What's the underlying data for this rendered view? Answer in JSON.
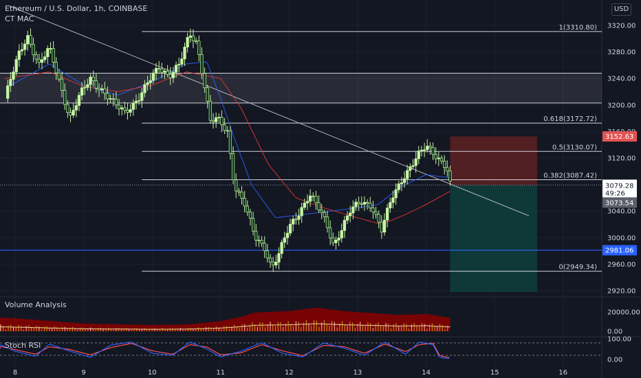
{
  "header": {
    "title": "Ethereum / U.S. Dollar, 1h, COINBASE",
    "indicator": "CT MAC",
    "currency_button": "USD"
  },
  "panes": {
    "volume_label": "Volume Analysis",
    "stoch_label": "Stoch RSI"
  },
  "colors": {
    "background": "#131722",
    "up": "#c6f5a3",
    "down": "#0b3a1a",
    "ma_fast": "#2962ff",
    "ma_slow": "#e53935",
    "fib_line": "#d1d4dc",
    "trend_line": "#b2b5be",
    "support_line": "#2962ff",
    "stop_zone": "#5a2024",
    "target_zone": "#0f3d3c",
    "volume_fill": "#8b0000",
    "stoch_k": "#2962ff",
    "stoch_d": "#ff5252"
  },
  "chart_data": {
    "type": "candlestick",
    "symbol": "Ethereum / U.S. Dollar",
    "interval": "1h",
    "exchange": "COINBASE",
    "x_axis_ticks": [
      "8",
      "9",
      "10",
      "11",
      "12",
      "13",
      "14",
      "15",
      "16"
    ],
    "y_axis_ticks": [
      "3320.00",
      "3280.00",
      "3240.00",
      "3200.00",
      "3160.00",
      "3120.00",
      "3080.00",
      "3040.00",
      "3000.00",
      "2960.00",
      "2920.00"
    ],
    "ylim": [
      2918,
      3330
    ],
    "price_path": [
      [
        7.85,
        3210
      ],
      [
        8.05,
        3275
      ],
      [
        8.18,
        3305
      ],
      [
        8.35,
        3260
      ],
      [
        8.5,
        3285
      ],
      [
        8.65,
        3235
      ],
      [
        8.8,
        3180
      ],
      [
        8.95,
        3215
      ],
      [
        9.1,
        3240
      ],
      [
        9.25,
        3225
      ],
      [
        9.45,
        3200
      ],
      [
        9.6,
        3190
      ],
      [
        9.8,
        3210
      ],
      [
        10.0,
        3242
      ],
      [
        10.1,
        3258
      ],
      [
        10.25,
        3245
      ],
      [
        10.4,
        3260
      ],
      [
        10.55,
        3307
      ],
      [
        10.65,
        3295
      ],
      [
        10.75,
        3240
      ],
      [
        10.85,
        3175
      ],
      [
        10.95,
        3178
      ],
      [
        11.1,
        3160
      ],
      [
        11.2,
        3080
      ],
      [
        11.35,
        3050
      ],
      [
        11.5,
        3000
      ],
      [
        11.65,
        2985
      ],
      [
        11.75,
        2955
      ],
      [
        11.85,
        2975
      ],
      [
        12.0,
        3015
      ],
      [
        12.15,
        3040
      ],
      [
        12.3,
        3065
      ],
      [
        12.45,
        3040
      ],
      [
        12.55,
        3020
      ],
      [
        12.65,
        2990
      ],
      [
        12.75,
        3010
      ],
      [
        12.9,
        3040
      ],
      [
        13.05,
        3055
      ],
      [
        13.2,
        3050
      ],
      [
        13.35,
        3010
      ],
      [
        13.5,
        3060
      ],
      [
        13.65,
        3090
      ],
      [
        13.8,
        3110
      ],
      [
        13.9,
        3125
      ],
      [
        14.0,
        3138
      ],
      [
        14.1,
        3130
      ],
      [
        14.2,
        3118
      ],
      [
        14.3,
        3105
      ],
      [
        14.35,
        3079
      ]
    ],
    "series": [
      {
        "name": "CT MAC fast",
        "style": "line",
        "path": [
          [
            7.85,
            3225
          ],
          [
            8.5,
            3262
          ],
          [
            9.0,
            3230
          ],
          [
            9.5,
            3215
          ],
          [
            10.0,
            3235
          ],
          [
            10.5,
            3262
          ],
          [
            10.8,
            3265
          ],
          [
            11.0,
            3210
          ],
          [
            11.2,
            3150
          ],
          [
            11.45,
            3080
          ],
          [
            11.8,
            3030
          ],
          [
            12.2,
            3035
          ],
          [
            12.6,
            3040
          ],
          [
            13.0,
            3045
          ],
          [
            13.3,
            3050
          ],
          [
            13.6,
            3075
          ],
          [
            14.0,
            3095
          ],
          [
            14.35,
            3090
          ]
        ]
      },
      {
        "name": "CT MAC slow",
        "style": "line",
        "path": [
          [
            7.85,
            3240
          ],
          [
            8.5,
            3250
          ],
          [
            9.0,
            3228
          ],
          [
            9.5,
            3220
          ],
          [
            10.0,
            3230
          ],
          [
            10.5,
            3250
          ],
          [
            11.0,
            3240
          ],
          [
            11.3,
            3195
          ],
          [
            11.7,
            3110
          ],
          [
            12.1,
            3060
          ],
          [
            12.5,
            3045
          ],
          [
            13.0,
            3030
          ],
          [
            13.35,
            3020
          ],
          [
            13.7,
            3035
          ],
          [
            14.0,
            3050
          ],
          [
            14.35,
            3070
          ]
        ]
      }
    ],
    "fibonacci": [
      {
        "label": "1(3310.80)",
        "price": 3310.8
      },
      {
        "label": "0.618(3172.72)",
        "price": 3172.72
      },
      {
        "label": "0.5(3130.07)",
        "price": 3130.07
      },
      {
        "label": "0.382(3087.42)",
        "price": 3087.42
      },
      {
        "label": "0(2949.34)",
        "price": 2949.34
      }
    ],
    "horizontal_levels": [
      3248,
      3203
    ],
    "trend_line": [
      [
        7.9,
        3350
      ],
      [
        15.5,
        3033
      ]
    ],
    "support_line": {
      "price": 2981.06,
      "label": "2981.06"
    },
    "position": {
      "stop": 3152.63,
      "entry": 3079.28,
      "target": 2918
    },
    "price_labels": {
      "stop": "3152.63",
      "current": "3079.28",
      "countdown": "49:26",
      "ma": "3073.54",
      "support": "2981.06"
    },
    "volume": {
      "y_ticks": [
        "20000.00",
        "0.00"
      ],
      "envelope": [
        [
          7.5,
          15000
        ],
        [
          8.0,
          13500
        ],
        [
          9.0,
          8000
        ],
        [
          10.0,
          6500
        ],
        [
          10.5,
          7000
        ],
        [
          11.0,
          10500
        ],
        [
          11.3,
          15000
        ],
        [
          11.5,
          19500
        ],
        [
          12.0,
          21000
        ],
        [
          12.4,
          24500
        ],
        [
          12.8,
          21000
        ],
        [
          13.2,
          19000
        ],
        [
          13.6,
          17000
        ],
        [
          14.0,
          18000
        ],
        [
          14.3,
          14500
        ],
        [
          14.35,
          14000
        ]
      ]
    },
    "stoch_rsi": {
      "y_ticks": [
        "100.00",
        "0.00"
      ],
      "bands": [
        80,
        20
      ],
      "k": [
        [
          7.5,
          55
        ],
        [
          7.8,
          70
        ],
        [
          8.0,
          40
        ],
        [
          8.3,
          15
        ],
        [
          8.5,
          75
        ],
        [
          8.8,
          40
        ],
        [
          9.1,
          10
        ],
        [
          9.4,
          70
        ],
        [
          9.7,
          85
        ],
        [
          10.0,
          30
        ],
        [
          10.3,
          20
        ],
        [
          10.55,
          85
        ],
        [
          10.8,
          50
        ],
        [
          11.0,
          12
        ],
        [
          11.3,
          40
        ],
        [
          11.6,
          82
        ],
        [
          11.9,
          30
        ],
        [
          12.2,
          12
        ],
        [
          12.5,
          80
        ],
        [
          12.8,
          55
        ],
        [
          13.1,
          20
        ],
        [
          13.4,
          85
        ],
        [
          13.7,
          25
        ],
        [
          13.9,
          85
        ],
        [
          14.1,
          72
        ],
        [
          14.2,
          8
        ],
        [
          14.35,
          5
        ]
      ],
      "d": [
        [
          7.5,
          50
        ],
        [
          7.8,
          62
        ],
        [
          8.0,
          48
        ],
        [
          8.3,
          25
        ],
        [
          8.5,
          62
        ],
        [
          8.8,
          48
        ],
        [
          9.1,
          22
        ],
        [
          9.4,
          58
        ],
        [
          9.7,
          78
        ],
        [
          10.0,
          42
        ],
        [
          10.3,
          25
        ],
        [
          10.55,
          72
        ],
        [
          10.8,
          60
        ],
        [
          11.0,
          22
        ],
        [
          11.3,
          32
        ],
        [
          11.6,
          72
        ],
        [
          11.9,
          42
        ],
        [
          12.2,
          18
        ],
        [
          12.5,
          68
        ],
        [
          12.8,
          62
        ],
        [
          13.1,
          30
        ],
        [
          13.4,
          75
        ],
        [
          13.7,
          38
        ],
        [
          13.9,
          72
        ],
        [
          14.1,
          78
        ],
        [
          14.2,
          18
        ],
        [
          14.35,
          8
        ]
      ]
    }
  }
}
